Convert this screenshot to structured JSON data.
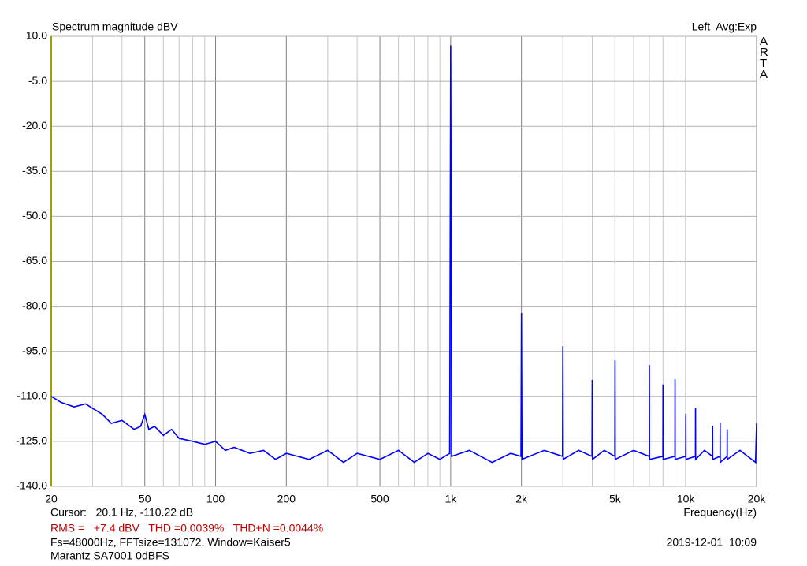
{
  "chart_data": {
    "type": "line",
    "title": "Spectrum magnitude dBV",
    "status": "Left  Avg:Exp",
    "brand": "ARTA",
    "xlabel": "Frequency(Hz)",
    "cursor": "Cursor:   20.1 Hz, -110.22 dB",
    "measurements": "RMS =   +7.4 dBV   THD =0.0039%   THD+N =0.0044%",
    "settings": "Fs=48000Hz, FFTsize=131072, Window=Kaiser5",
    "timestamp": "2019-12-01  10:09",
    "device": "Marantz SA7001 0dBFS",
    "xscale": "log",
    "grid": true,
    "xlim": [
      20,
      20000
    ],
    "ylim": [
      -140,
      10
    ],
    "xticks": [
      20,
      50,
      100,
      200,
      500,
      {
        "value": 1000,
        "label": "1k"
      },
      {
        "value": 2000,
        "label": "2k"
      },
      {
        "value": 5000,
        "label": "5k"
      },
      {
        "value": 10000,
        "label": "10k"
      },
      {
        "value": 20000,
        "label": "20k"
      }
    ],
    "xminorticks": [
      30,
      40,
      60,
      70,
      80,
      90,
      300,
      400,
      600,
      700,
      800,
      900,
      3000,
      4000,
      6000,
      7000,
      8000,
      9000
    ],
    "yticks": [
      {
        "value": 10,
        "label": "10.0"
      },
      {
        "value": -5,
        "label": "-5.0"
      },
      {
        "value": -20,
        "label": "-20.0"
      },
      {
        "value": -35,
        "label": "-35.0"
      },
      {
        "value": -50,
        "label": "-50.0"
      },
      {
        "value": -65,
        "label": "-65.0"
      },
      {
        "value": -80,
        "label": "-80.0"
      },
      {
        "value": -95,
        "label": "-95.0"
      },
      {
        "value": -110,
        "label": "-110.0"
      },
      {
        "value": -125,
        "label": "-125.0"
      },
      {
        "value": -140,
        "label": "-140.0"
      }
    ],
    "x": [
      20,
      22,
      25,
      28,
      30,
      33,
      36,
      40,
      45,
      48,
      50,
      52,
      55,
      60,
      65,
      70,
      80,
      90,
      100,
      110,
      120,
      140,
      160,
      180,
      200,
      250,
      300,
      350,
      400,
      500,
      600,
      700,
      800,
      900,
      990,
      1000,
      1010,
      1200,
      1500,
      1800,
      1990,
      2000,
      2010,
      2500,
      2990,
      3000,
      3010,
      3500,
      3990,
      4000,
      4010,
      4500,
      4990,
      5000,
      5010,
      6000,
      6990,
      7000,
      7010,
      7990,
      8000,
      8010,
      8990,
      9000,
      9010,
      9990,
      10000,
      10010,
      10990,
      11000,
      11010,
      12000,
      12990,
      13000,
      13010,
      13990,
      14000,
      14010,
      14990,
      15000,
      15010,
      17000,
      19800,
      20000
    ],
    "series": [
      {
        "color": "#0000ff",
        "values": [
          -110,
          -112,
          -113.5,
          -112.5,
          -114,
          -116,
          -119,
          -118,
          -121,
          -120,
          -116,
          -121,
          -120,
          -123,
          -121,
          -124,
          -125,
          -126,
          -125,
          -128,
          -127,
          -129,
          -128,
          -131,
          -129,
          -131,
          -128,
          -132,
          -129,
          -131,
          -128,
          -132,
          -129,
          -131,
          -129,
          7,
          -130,
          -128,
          -132,
          -129,
          -130,
          -82.2,
          -131,
          -128,
          -130,
          -93.3,
          -131,
          -128,
          -130,
          -104.5,
          -131,
          -128,
          -130,
          -98,
          -131,
          -128,
          -130,
          -99.6,
          -131,
          -130,
          -106,
          -131,
          -130,
          -104.3,
          -131,
          -130,
          -115.8,
          -131,
          -130,
          -114,
          -131,
          -128,
          -130,
          -119.8,
          -131,
          -130,
          -118.7,
          -132,
          -130,
          -121,
          -131,
          -128,
          -132,
          -119
        ]
      }
    ]
  }
}
